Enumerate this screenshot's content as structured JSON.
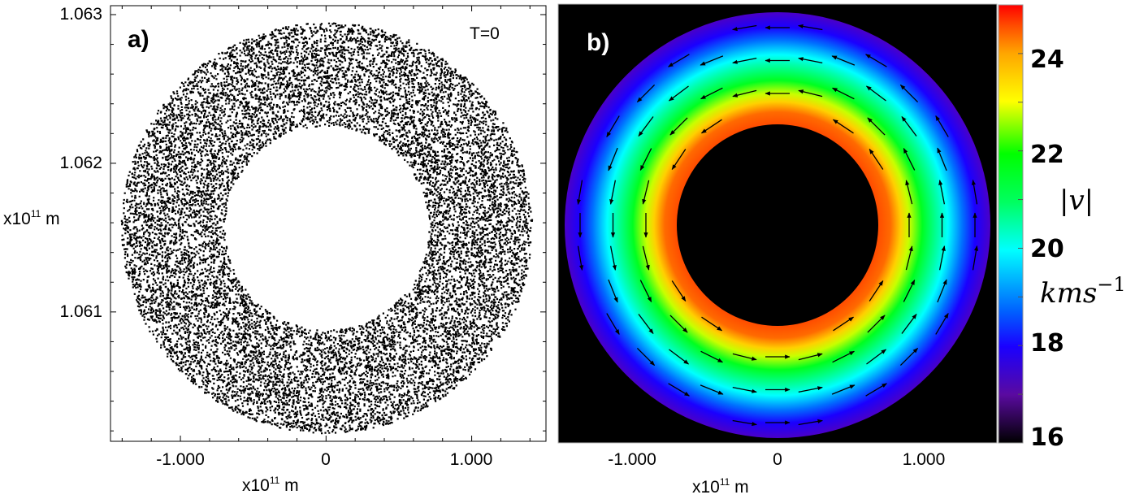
{
  "chart_data": [
    {
      "panel_label": "a)",
      "type": "scatter",
      "annotation": "T=0",
      "xlabel": "x10^11 m",
      "ylabel": "x10^11 m",
      "xlim": [
        -1.48,
        1.51
      ],
      "ylim": [
        1.06013,
        1.06306
      ],
      "xticks": [
        {
          "value": -1.0,
          "label": "-1.000"
        },
        {
          "value": 0,
          "label": "0"
        },
        {
          "value": 1.0,
          "label": "1.000"
        }
      ],
      "yticks": [
        {
          "value": 1.061,
          "label": "1.061"
        },
        {
          "value": 1.062,
          "label": "1.062"
        },
        {
          "value": 1.063,
          "label": "1.063"
        }
      ],
      "point_color": "#000000",
      "ring": {
        "center_x": 0,
        "center_y": 1.06157,
        "inner_radius_x": 0.7,
        "outer_radius_x": 1.41
      }
    },
    {
      "panel_label": "b)",
      "type": "heatmap",
      "xlabel": "x10^11 m",
      "xlim": [
        -1.48,
        1.51
      ],
      "xticks": [
        {
          "value": -1.0,
          "label": "-1.000"
        },
        {
          "value": 0,
          "label": "0"
        },
        {
          "value": 1.0,
          "label": "1.000"
        }
      ],
      "background": "#000000",
      "ring": {
        "center_x": 0,
        "inner_radius_x": 0.69,
        "outer_radius_x": 1.45,
        "speed_inner": 24.6,
        "speed_outer": 17.2
      },
      "vector_field": {
        "direction": "counterclockwise",
        "color": "#000000"
      },
      "colorbar": {
        "label": "|v|",
        "unit": "kms",
        "unit_exponent": "−1",
        "range": [
          16,
          25
        ],
        "ticks": [
          {
            "value": 16,
            "label": "16"
          },
          {
            "value": 18,
            "label": "18"
          },
          {
            "value": 20,
            "label": "20"
          },
          {
            "value": 22,
            "label": "22"
          },
          {
            "value": 24,
            "label": "24"
          }
        ],
        "colormap": [
          "#000000",
          "#5a0aa0",
          "#1a00ff",
          "#0060ff",
          "#00ffff",
          "#00ff40",
          "#00ff00",
          "#ffff00",
          "#ffa500",
          "#ff5000",
          "#ff0000"
        ]
      }
    }
  ]
}
